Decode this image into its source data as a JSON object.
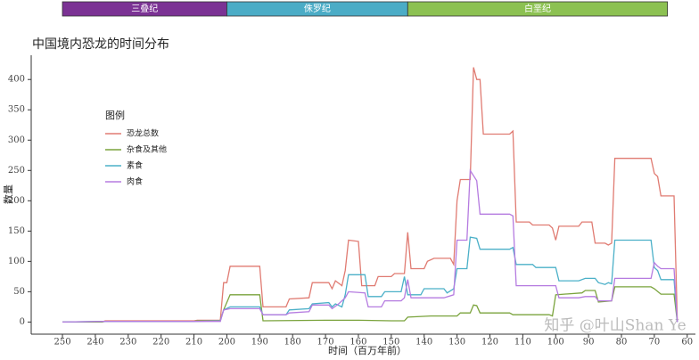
{
  "chart_data": {
    "type": "line",
    "title": "中国境内恐龙的时间分布",
    "x_label": "时间（百万年前）",
    "y_label": "数量",
    "legend_title": "图例",
    "watermark": "知乎 @叶山Shan Ye",
    "periods": [
      {
        "name": "三叠纪",
        "start": 250,
        "end": 200,
        "color": "#7b3294"
      },
      {
        "name": "侏罗纪",
        "start": 200,
        "end": 145,
        "color": "#4bacc6"
      },
      {
        "name": "白垩纪",
        "start": 145,
        "end": 66,
        "color": "#8cc152"
      }
    ],
    "xlim": [
      259.5,
      57.5
    ],
    "ylim": [
      -20,
      440
    ],
    "xticks": [
      250,
      240,
      230,
      220,
      210,
      200,
      190,
      180,
      170,
      160,
      150,
      140,
      130,
      120,
      110,
      100,
      90,
      80,
      70,
      60
    ],
    "yticks": [
      0,
      50,
      100,
      150,
      200,
      250,
      300,
      350,
      400
    ],
    "series": [
      {
        "name": "恐龙总数",
        "color": "#e07b72",
        "x": [
          250,
          238,
          237,
          210,
          209,
          202,
          201,
          200,
          199,
          190,
          189,
          182,
          181,
          175,
          174,
          169,
          168,
          167,
          165,
          164,
          163,
          160,
          159,
          155,
          154,
          150,
          149,
          146,
          145,
          144,
          140,
          139,
          137,
          132,
          131,
          130,
          129,
          126,
          125,
          124,
          123,
          122,
          114,
          113,
          112,
          108,
          107,
          102,
          101,
          100,
          99,
          93,
          92,
          89,
          88,
          85,
          84,
          83,
          82,
          71,
          70,
          69,
          68,
          64,
          63
        ],
        "values": [
          0,
          0,
          2,
          2,
          3,
          3,
          65,
          65,
          92,
          92,
          25,
          25,
          38,
          40,
          65,
          65,
          55,
          68,
          60,
          85,
          135,
          133,
          60,
          60,
          75,
          75,
          80,
          80,
          148,
          88,
          88,
          100,
          105,
          105,
          95,
          200,
          235,
          235,
          420,
          400,
          400,
          310,
          310,
          315,
          165,
          165,
          160,
          160,
          155,
          135,
          158,
          158,
          165,
          165,
          130,
          130,
          127,
          130,
          270,
          270,
          245,
          240,
          208,
          208,
          0
        ]
      },
      {
        "name": "杂食及其他",
        "color": "#7aa33c",
        "x": [
          250,
          238,
          237,
          210,
          209,
          202,
          201,
          199,
          190,
          189,
          170,
          160,
          150,
          146,
          145,
          138,
          130,
          129,
          126,
          125,
          124,
          123,
          114,
          113,
          102,
          101,
          100,
          92,
          91,
          88,
          87,
          83,
          82,
          71,
          70,
          68,
          64,
          63
        ],
        "values": [
          0,
          0,
          1,
          1,
          2,
          2,
          20,
          45,
          45,
          2,
          3,
          3,
          2,
          2,
          8,
          10,
          10,
          15,
          15,
          28,
          27,
          15,
          15,
          12,
          12,
          10,
          45,
          48,
          52,
          52,
          33,
          35,
          58,
          58,
          55,
          46,
          46,
          0
        ]
      },
      {
        "name": "素食",
        "color": "#4bb0c8",
        "x": [
          250,
          238,
          210,
          202,
          201,
          199,
          190,
          189,
          182,
          181,
          175,
          174,
          169,
          168,
          167,
          165,
          164,
          163,
          158,
          157,
          153,
          152,
          147,
          146,
          145,
          141,
          140,
          134,
          133,
          131,
          130,
          127,
          126,
          124,
          123,
          114,
          113,
          112,
          107,
          106,
          100,
          99,
          93,
          91,
          88,
          87,
          85,
          84,
          83,
          82,
          71,
          70,
          69,
          68,
          64,
          63
        ],
        "values": [
          0,
          1,
          1,
          2,
          20,
          25,
          25,
          12,
          12,
          20,
          22,
          30,
          32,
          25,
          30,
          25,
          45,
          78,
          78,
          42,
          42,
          50,
          50,
          75,
          45,
          45,
          55,
          55,
          48,
          55,
          88,
          88,
          140,
          138,
          120,
          120,
          123,
          95,
          95,
          90,
          90,
          68,
          68,
          72,
          72,
          65,
          62,
          65,
          63,
          135,
          135,
          90,
          85,
          70,
          70,
          0
        ]
      },
      {
        "name": "肉食",
        "color": "#b57be0",
        "x": [
          250,
          238,
          210,
          202,
          201,
          199,
          190,
          189,
          182,
          181,
          175,
          174,
          169,
          168,
          166,
          164,
          163,
          158,
          157,
          153,
          152,
          147,
          146,
          145,
          144,
          134,
          131,
          130,
          127,
          126,
          124,
          123,
          114,
          113,
          112,
          100,
          99,
          93,
          91,
          88,
          87,
          83,
          82,
          71,
          70,
          69,
          68,
          64,
          63
        ],
        "values": [
          0,
          1,
          1,
          1,
          20,
          22,
          22,
          12,
          12,
          15,
          17,
          28,
          28,
          22,
          30,
          40,
          50,
          48,
          25,
          25,
          35,
          35,
          40,
          70,
          40,
          40,
          45,
          135,
          135,
          250,
          233,
          178,
          178,
          175,
          60,
          60,
          40,
          40,
          42,
          42,
          35,
          35,
          72,
          72,
          98,
          92,
          88,
          88,
          0
        ]
      }
    ]
  }
}
